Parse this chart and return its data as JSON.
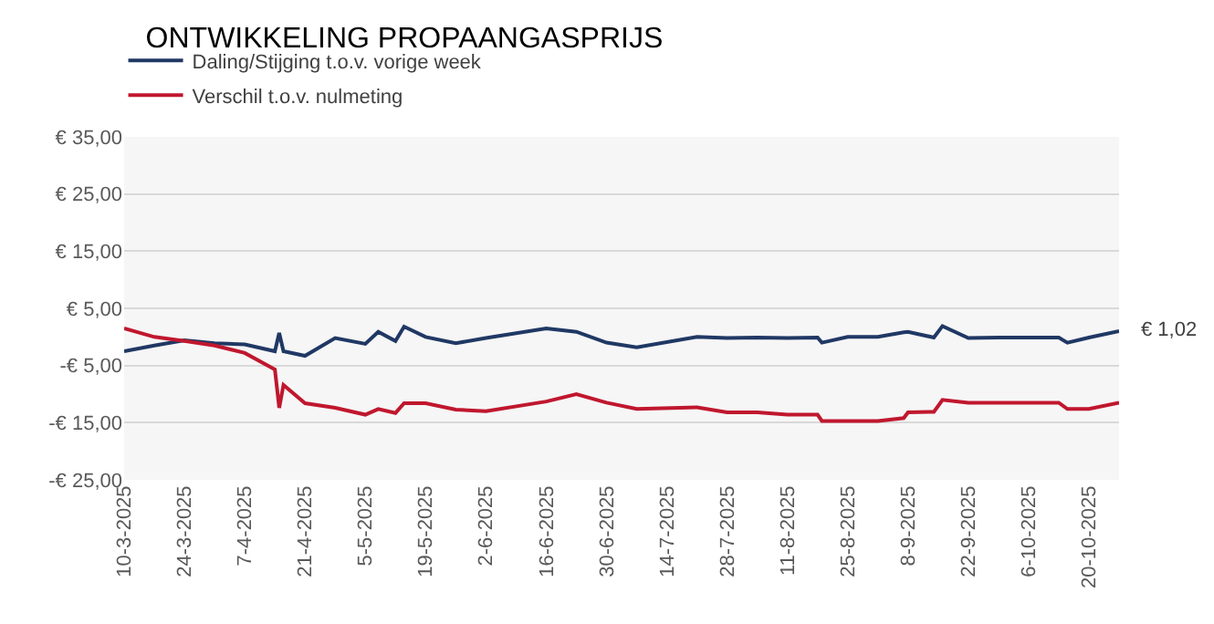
{
  "chart_data": {
    "type": "line",
    "title": "ONTWIKKELING PROPAANGASPRIJS",
    "x": [
      "2025-03-10",
      "2025-03-17",
      "2025-03-24",
      "2025-03-31",
      "2025-04-07",
      "2025-04-14",
      "2025-04-15",
      "2025-04-16",
      "2025-04-21",
      "2025-04-28",
      "2025-05-05",
      "2025-05-08",
      "2025-05-12",
      "2025-05-14",
      "2025-05-19",
      "2025-05-26",
      "2025-06-02",
      "2025-06-16",
      "2025-06-23",
      "2025-06-30",
      "2025-07-07",
      "2025-07-21",
      "2025-07-28",
      "2025-08-04",
      "2025-08-11",
      "2025-08-18",
      "2025-08-19",
      "2025-08-25",
      "2025-09-01",
      "2025-09-07",
      "2025-09-08",
      "2025-09-14",
      "2025-09-16",
      "2025-09-22",
      "2025-09-29",
      "2025-10-06",
      "2025-10-13",
      "2025-10-15",
      "2025-10-20",
      "2025-10-27"
    ],
    "series": [
      {
        "name": "Daling/Stijging t.o.v. vorige week",
        "color": "#203864",
        "values": [
          -2.5,
          -1.5,
          -0.6,
          -1.1,
          -1.3,
          -2.5,
          0.7,
          -2.5,
          -3.3,
          -0.2,
          -1.2,
          0.9,
          -0.7,
          1.8,
          0,
          -1.1,
          -0.2,
          1.5,
          0.9,
          -1.0,
          -1.8,
          0,
          -0.2,
          -0.1,
          -0.2,
          -0.1,
          -1.0,
          0,
          0,
          0.8,
          0.9,
          -0.1,
          1.9,
          -0.2,
          -0.1,
          -0.1,
          -0.1,
          -1.0,
          -0.1,
          1.02
        ]
      },
      {
        "name": "Verschil t.o.v. nulmeting",
        "color": "#c0172e",
        "values": [
          1.5,
          0,
          -0.7,
          -1.5,
          -2.8,
          -5.7,
          -12.4,
          -8.4,
          -11.6,
          -12.4,
          -13.6,
          -12.6,
          -13.3,
          -11.6,
          -11.6,
          -12.7,
          -13.0,
          -11.3,
          -10.0,
          -11.5,
          -12.6,
          -12.3,
          -13.2,
          -13.2,
          -13.6,
          -13.6,
          -14.7,
          -14.7,
          -14.7,
          -14.2,
          -13.2,
          -13.1,
          -11.0,
          -11.5,
          -11.5,
          -11.5,
          -11.5,
          -12.6,
          -12.6,
          -11.5
        ]
      }
    ],
    "xlim": [
      "2025-03-10",
      "2025-10-27"
    ],
    "xticks": [
      {
        "value": "2025-03-10",
        "label": "10-3-2025"
      },
      {
        "value": "2025-03-24",
        "label": "24-3-2025"
      },
      {
        "value": "2025-04-07",
        "label": "7-4-2025"
      },
      {
        "value": "2025-04-21",
        "label": "21-4-2025"
      },
      {
        "value": "2025-05-05",
        "label": "5-5-2025"
      },
      {
        "value": "2025-05-19",
        "label": "19-5-2025"
      },
      {
        "value": "2025-06-02",
        "label": "2-6-2025"
      },
      {
        "value": "2025-06-16",
        "label": "16-6-2025"
      },
      {
        "value": "2025-06-30",
        "label": "30-6-2025"
      },
      {
        "value": "2025-07-14",
        "label": "14-7-2025"
      },
      {
        "value": "2025-07-28",
        "label": "28-7-2025"
      },
      {
        "value": "2025-08-11",
        "label": "11-8-2025"
      },
      {
        "value": "2025-08-25",
        "label": "25-8-2025"
      },
      {
        "value": "2025-09-08",
        "label": "8-9-2025"
      },
      {
        "value": "2025-09-22",
        "label": "22-9-2025"
      },
      {
        "value": "2025-10-06",
        "label": "6-10-2025"
      },
      {
        "value": "2025-10-20",
        "label": "20-10-2025"
      }
    ],
    "ylim": [
      -25,
      35
    ],
    "yticks": [
      {
        "value": 35,
        "label": "€ 35,00"
      },
      {
        "value": 25,
        "label": "€ 25,00"
      },
      {
        "value": 15,
        "label": "€ 15,00"
      },
      {
        "value": 5,
        "label": "€ 5,00"
      },
      {
        "value": -5,
        "label": "-€ 5,00"
      },
      {
        "value": -15,
        "label": "-€ 15,00"
      },
      {
        "value": -25,
        "label": "-€ 25,00"
      }
    ],
    "annotations": [
      {
        "text": "€ 1,02",
        "x": "2025-10-27",
        "y": 1.02
      }
    ],
    "grid": "y",
    "legend": "top left",
    "marker": "none",
    "line_style": "solid"
  }
}
